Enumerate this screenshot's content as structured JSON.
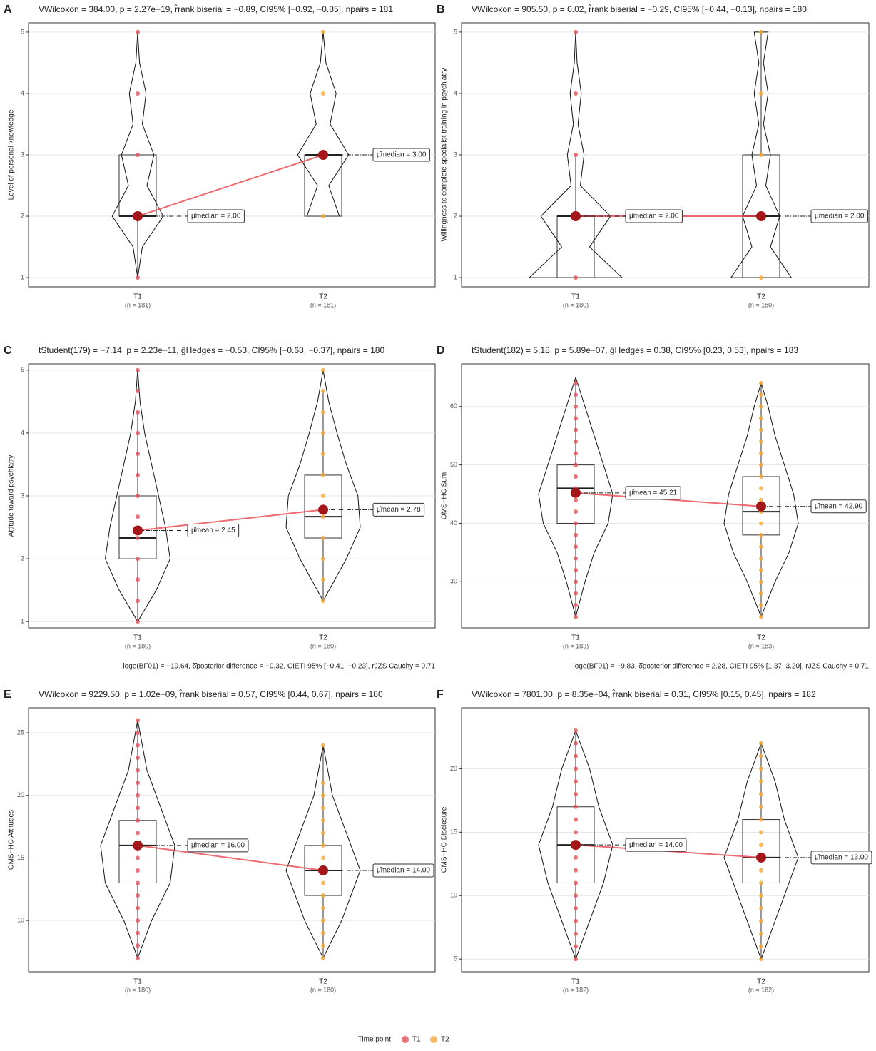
{
  "chart_data": [
    {
      "type": "violin",
      "letter": "A",
      "subtitle": "VWilcoxon = 384.00, p = 2.27e−19, r̂rank biserial = −0.89, CI95% [−0.92, −0.85], npairs = 181",
      "ylabel": "Level of personal knowledge",
      "ylim": [
        0.85,
        5.15
      ],
      "yticks": [
        1,
        2,
        3,
        4,
        5
      ],
      "categories": [
        "T1",
        "T2"
      ],
      "n_labels": [
        "(n = 181)",
        "(n = 181)"
      ],
      "groups": [
        {
          "points": [
            1,
            2,
            3,
            4,
            5
          ],
          "box": {
            "min": 1,
            "q1": 2,
            "median": 2,
            "q3": 3,
            "max": 3
          },
          "center": 2,
          "center_label": "μ̂median = 2.00",
          "violin": {
            "y": [
              1,
              1.5,
              2,
              2.5,
              3,
              3.5,
              4,
              4.5,
              5
            ],
            "w": [
              0,
              0.1,
              0.55,
              0.2,
              0.35,
              0.1,
              0.18,
              0.04,
              0
            ]
          }
        },
        {
          "points": [
            2,
            3,
            4,
            5
          ],
          "box": {
            "min": 2,
            "q1": 2,
            "median": 3,
            "q3": 3,
            "max": 3
          },
          "center": 3,
          "center_label": "μ̂median = 3.00",
          "violin": {
            "y": [
              2,
              2.5,
              3,
              3.5,
              4,
              4.5,
              5
            ],
            "w": [
              0.35,
              0.12,
              0.55,
              0.15,
              0.28,
              0.06,
              0
            ]
          }
        }
      ]
    },
    {
      "type": "violin",
      "letter": "B",
      "subtitle": "VWilcoxon = 905.50, p = 0.02, r̂rank biserial = −0.29, CI95% [−0.44, −0.13], npairs = 180",
      "ylabel": "Willingness to complete specialist training in psychiatry",
      "ylim": [
        0.85,
        5.15
      ],
      "yticks": [
        1,
        2,
        3,
        4,
        5
      ],
      "categories": [
        "T1",
        "T2"
      ],
      "n_labels": [
        "(n = 180)",
        "(n = 180)"
      ],
      "groups": [
        {
          "points": [
            1,
            2,
            3,
            4,
            5
          ],
          "box": {
            "min": 1,
            "q1": 1,
            "median": 2,
            "q3": 2,
            "max": 3
          },
          "center": 2,
          "center_label": "μ̂median = 2.00",
          "violin": {
            "y": [
              1,
              1.5,
              2,
              2.5,
              3,
              3.5,
              4,
              4.5,
              5
            ],
            "w": [
              1,
              0.3,
              0.75,
              0.1,
              0.18,
              0.05,
              0.12,
              0.03,
              0
            ]
          }
        },
        {
          "points": [
            1,
            2,
            3,
            4,
            5
          ],
          "box": {
            "min": 1,
            "q1": 1,
            "median": 2,
            "q3": 3,
            "max": 5
          },
          "center": 2,
          "center_label": "μ̂median = 2.00",
          "violin": {
            "y": [
              1,
              1.5,
              2,
              2.5,
              3,
              3.5,
              4,
              4.5,
              5
            ],
            "w": [
              0.65,
              0.2,
              0.4,
              0.1,
              0.2,
              0.05,
              0.15,
              0.05,
              0.15
            ]
          }
        }
      ]
    },
    {
      "type": "violin",
      "letter": "C",
      "subtitle": "tStudent(179) = −7.14, p = 2.23e−11, ĝHedges = −0.53, CI95% [−0.68, −0.37], npairs = 180",
      "caption": "loge(BF01) = −19.64, δ̂posterior difference = −0.32, CIETI 95% [−0.41, −0.23], rJZS Cauchy = 0.71",
      "ylabel": "Attitude toward psychiatry",
      "ylim": [
        0.9,
        5.1
      ],
      "yticks": [
        1,
        2,
        3,
        4,
        5
      ],
      "categories": [
        "T1",
        "T2"
      ],
      "n_labels": [
        "(n = 180)",
        "(n = 180)"
      ],
      "groups": [
        {
          "points": [
            1,
            1.33,
            1.67,
            2,
            2.33,
            2.67,
            3,
            3.33,
            3.67,
            4,
            4.33,
            4.67,
            5
          ],
          "box": {
            "min": 1,
            "q1": 2,
            "median": 2.33,
            "q3": 3,
            "max": 4.33
          },
          "center": 2.45,
          "center_label": "μ̂mean = 2.45",
          "violin": {
            "y": [
              1,
              1.5,
              2,
              2.5,
              3,
              3.5,
              4,
              4.5,
              5
            ],
            "w": [
              0,
              0.4,
              0.7,
              0.6,
              0.45,
              0.3,
              0.15,
              0.05,
              0
            ]
          }
        },
        {
          "points": [
            1.33,
            1.67,
            2,
            2.33,
            2.67,
            3,
            3.33,
            3.67,
            4,
            4.33,
            4.67,
            5
          ],
          "box": {
            "min": 1.33,
            "q1": 2.33,
            "median": 2.67,
            "q3": 3.33,
            "max": 4.67
          },
          "center": 2.78,
          "center_label": "μ̂mean = 2.78",
          "violin": {
            "y": [
              1.33,
              2,
              2.5,
              3,
              3.5,
              4,
              4.5,
              5
            ],
            "w": [
              0,
              0.5,
              0.8,
              0.75,
              0.5,
              0.3,
              0.12,
              0
            ]
          }
        }
      ]
    },
    {
      "type": "violin",
      "letter": "D",
      "subtitle": "tStudent(182) = 5.18, p = 5.89e−07, ĝHedges = 0.38, CI95% [0.23, 0.53], npairs = 183",
      "caption": "loge(BF01) = −9.83, δ̂posterior difference = 2.28, CIETI 95% [1.37, 3.20], rJZS Cauchy = 0.71",
      "ylabel": "OMS−HC Sum",
      "ylim": [
        22.1,
        67.3
      ],
      "yticks": [
        30,
        40,
        50,
        60
      ],
      "categories": [
        "T1",
        "T2"
      ],
      "n_labels": [
        "(n = 183)",
        "(n = 183)"
      ],
      "groups": [
        {
          "points": [
            24,
            26,
            28,
            30,
            32,
            34,
            36,
            38,
            40,
            42,
            44,
            46,
            48,
            50,
            52,
            54,
            56,
            58,
            60,
            62,
            64
          ],
          "box": {
            "min": 24,
            "q1": 40,
            "median": 46,
            "q3": 50,
            "max": 65
          },
          "center": 45.21,
          "center_label": "μ̂mean = 45.21",
          "violin": {
            "y": [
              24,
              30,
              35,
              40,
              45,
              50,
              55,
              60,
              65
            ],
            "w": [
              0,
              0.2,
              0.4,
              0.7,
              0.8,
              0.6,
              0.4,
              0.2,
              0
            ]
          }
        },
        {
          "points": [
            24,
            26,
            28,
            30,
            32,
            34,
            36,
            38,
            40,
            42,
            44,
            46,
            48,
            50,
            52,
            54,
            56,
            58,
            60,
            62,
            64
          ],
          "box": {
            "min": 24,
            "q1": 38,
            "median": 42,
            "q3": 48,
            "max": 64
          },
          "center": 42.9,
          "center_label": "μ̂mean = 42.90",
          "violin": {
            "y": [
              24,
              30,
              35,
              40,
              45,
              50,
              55,
              60,
              64
            ],
            "w": [
              0,
              0.3,
              0.6,
              0.8,
              0.7,
              0.5,
              0.3,
              0.15,
              0
            ]
          }
        }
      ]
    },
    {
      "type": "violin",
      "letter": "E",
      "subtitle": "VWilcoxon = 9229.50, p = 1.02e−09, r̂rank biserial = 0.57, CI95% [0.44, 0.67], npairs = 180",
      "ylabel": "OMS−HC Attitudes",
      "ylim": [
        5.9,
        27
      ],
      "yticks": [
        10,
        15,
        20,
        25
      ],
      "categories": [
        "T1",
        "T2"
      ],
      "n_labels": [
        "(n = 180)",
        "(n = 180)"
      ],
      "groups": [
        {
          "points": [
            7,
            8,
            9,
            10,
            11,
            12,
            13,
            14,
            15,
            16,
            17,
            18,
            19,
            20,
            21,
            22,
            23,
            24,
            25,
            26
          ],
          "box": {
            "min": 7,
            "q1": 13,
            "median": 16,
            "q3": 18,
            "max": 26
          },
          "center": 16,
          "center_label": "μ̂median = 16.00",
          "violin": {
            "y": [
              7,
              10,
              13,
              16,
              19,
              22,
              26
            ],
            "w": [
              0,
              0.3,
              0.7,
              0.8,
              0.5,
              0.2,
              0
            ]
          }
        },
        {
          "points": [
            7,
            8,
            9,
            10,
            11,
            12,
            13,
            14,
            15,
            16,
            17,
            18,
            19,
            20,
            21,
            24
          ],
          "box": {
            "min": 7,
            "q1": 12,
            "median": 14,
            "q3": 16,
            "max": 24
          },
          "center": 14,
          "center_label": "μ̂median = 14.00",
          "violin": {
            "y": [
              7,
              10,
              12,
              14,
              17,
              20,
              24
            ],
            "w": [
              0,
              0.4,
              0.6,
              0.8,
              0.5,
              0.2,
              0
            ]
          }
        }
      ]
    },
    {
      "type": "violin",
      "letter": "F",
      "subtitle": "VWilcoxon = 7801.00, p = 8.35e−04, r̂rank biserial = 0.31, CI95% [0.15, 0.45], npairs = 182",
      "ylabel": "OMS−HC Disclosure",
      "ylim": [
        4,
        24.8
      ],
      "yticks": [
        5,
        10,
        15,
        20
      ],
      "categories": [
        "T1",
        "T2"
      ],
      "n_labels": [
        "(n = 182)",
        "(n = 182)"
      ],
      "groups": [
        {
          "points": [
            5,
            6,
            7,
            8,
            9,
            10,
            11,
            12,
            13,
            14,
            15,
            16,
            17,
            18,
            19,
            20,
            21,
            22,
            23
          ],
          "box": {
            "min": 5,
            "q1": 11,
            "median": 14,
            "q3": 17,
            "max": 23
          },
          "center": 14,
          "center_label": "μ̂median = 14.00",
          "violin": {
            "y": [
              5,
              8,
              11,
              14,
              17,
              20,
              23
            ],
            "w": [
              0,
              0.3,
              0.6,
              0.8,
              0.5,
              0.3,
              0
            ]
          }
        },
        {
          "points": [
            5,
            6,
            7,
            8,
            9,
            10,
            11,
            12,
            13,
            14,
            15,
            16,
            17,
            18,
            19,
            20,
            21,
            22
          ],
          "box": {
            "min": 5,
            "q1": 11,
            "median": 13,
            "q3": 16,
            "max": 22
          },
          "center": 13,
          "center_label": "μ̂median = 13.00",
          "violin": {
            "y": [
              5,
              8,
              11,
              13,
              16,
              19,
              22
            ],
            "w": [
              0,
              0.3,
              0.6,
              0.8,
              0.5,
              0.3,
              0
            ]
          }
        }
      ]
    }
  ],
  "legend": {
    "title": "Time point",
    "series": [
      {
        "name": "T1",
        "color": "#e0525a"
      },
      {
        "name": "T2",
        "color": "#f4a93a"
      }
    ]
  }
}
